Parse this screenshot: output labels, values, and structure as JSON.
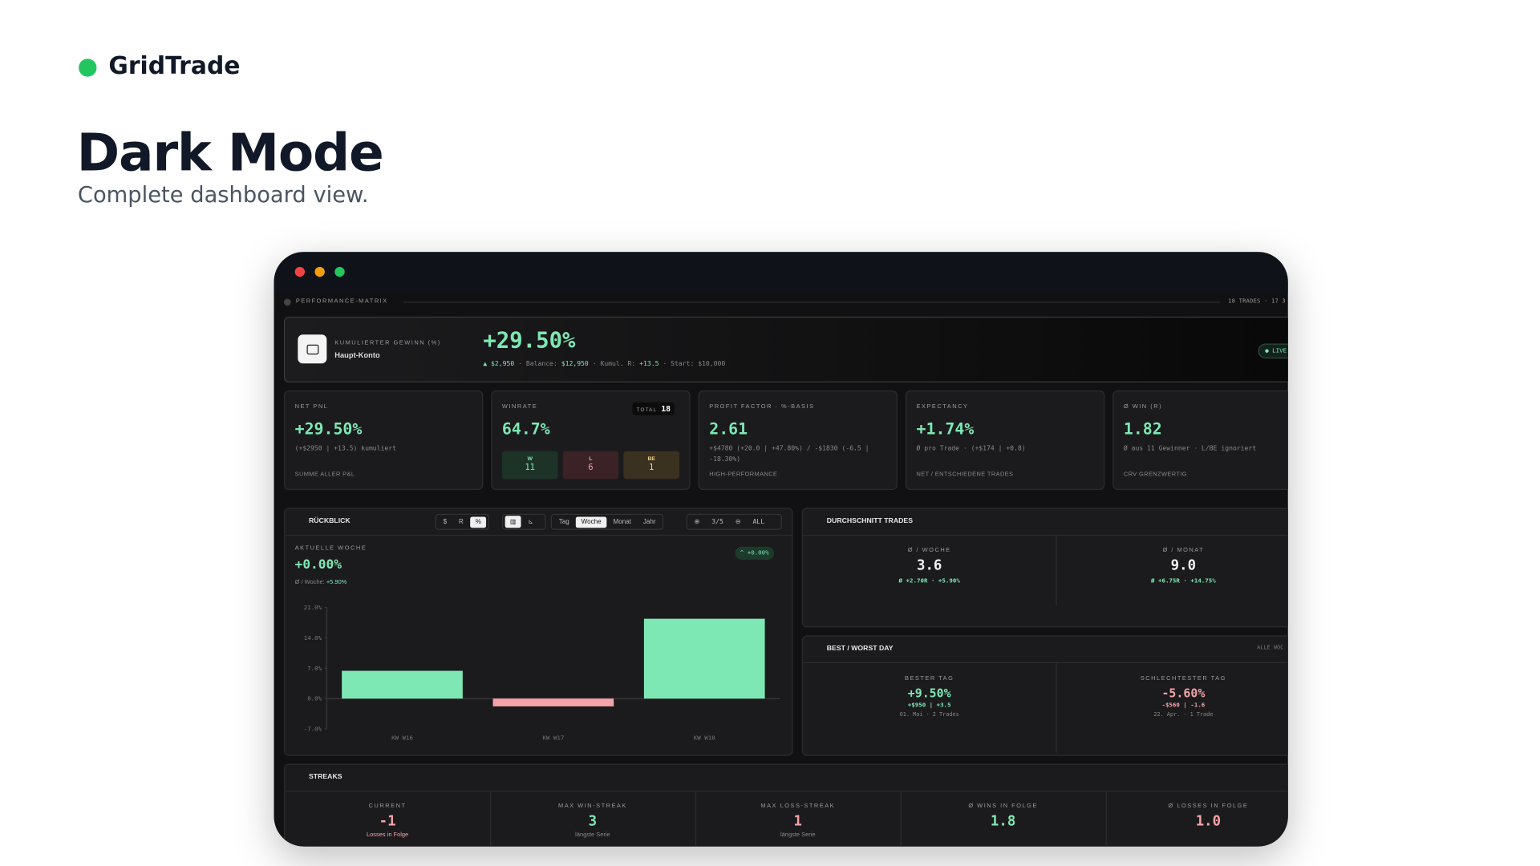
{
  "header": {
    "brand": "GridTrade",
    "title": "Dark Mode",
    "subtitle": "Complete dashboard view."
  },
  "matrix": {
    "label": "PERFORMANCE-MATRIX",
    "meta": "18 TRADES · 17 3"
  },
  "hero": {
    "label": "KUMULIERTER GEWINN (%)",
    "account": "Haupt-Konto",
    "value": "+29.50%",
    "change": "▲ $2,950",
    "balance_label": "· Balance:",
    "balance": "$12,950",
    "r_label": "· Kumul. R:",
    "r": "+13.5",
    "start": "· Start: $10,000",
    "live": "● LIVE"
  },
  "stats": [
    {
      "label": "NET PNL",
      "value": "+29.50%",
      "sub": "(+$2950 | +13.5) kumuliert",
      "footer": "SUMME ALLER P&L"
    },
    {
      "label": "WINRATE",
      "total_label": "TOTAL",
      "total": "18",
      "value": "64.7%",
      "boxes": [
        {
          "label": "W",
          "value": "11"
        },
        {
          "label": "L",
          "value": "6"
        },
        {
          "label": "BE",
          "value": "1"
        }
      ]
    },
    {
      "label": "PROFIT FACTOR · %-BASIS",
      "value": "2.61",
      "sub": "+$4780 (+20.0 | +47.80%) / -$1830 (-6.5 | -18.30%)",
      "footer": "HIGH-PERFORMANCE"
    },
    {
      "label": "EXPECTANCY",
      "value": "+1.74%",
      "sub": "Ø pro Trade · (+$174 | +0.8)",
      "footer": "NET / ENTSCHIEDENE TRADES"
    },
    {
      "label": "Ø WIN (R)",
      "value": "1.82",
      "sub": "Ø aus 11 Gewinner · L/BE ignoriert",
      "footer": "CRV GRENZWERTIG"
    }
  ],
  "review": {
    "title": "RÜCKBLICK",
    "modes": [
      "$",
      "R",
      "%"
    ],
    "periods": [
      "Tag",
      "Woche",
      "Monat",
      "Jahr"
    ],
    "page": "3/5",
    "all": "ALL",
    "current_label": "AKTUELLE WOCHE",
    "current_value": "+0.00%",
    "avg_label": "Ø / Woche:",
    "avg_value": "+5.90%",
    "badge": "^ +0.00%"
  },
  "chart_data": {
    "type": "bar",
    "categories": [
      "KW W16",
      "KW W17",
      "KW W18"
    ],
    "values": [
      6.4,
      -1.8,
      18.4
    ],
    "color": "#7ee8b4",
    "negative_color": "#f4a3a8",
    "ylim": [
      -7,
      21
    ],
    "yticks": [
      {
        "value": -7,
        "label": "-7.0%"
      },
      {
        "value": 0,
        "label": "0.0%"
      },
      {
        "value": 7,
        "label": "7.0%"
      },
      {
        "value": 14,
        "label": "14.0%"
      },
      {
        "value": 21,
        "label": "21.0%"
      }
    ],
    "grid": false
  },
  "averages": {
    "title": "DURCHSCHNITT TRADES",
    "columns": [
      {
        "label": "Ø / WOCHE",
        "value": "3.6",
        "sub": "Ø +2.70R · +5.90%"
      },
      {
        "label": "Ø / MONAT",
        "value": "9.0",
        "sub": "Ø +6.75R · +14.75%"
      }
    ]
  },
  "best_worst": {
    "title": "BEST / WORST DAY",
    "filter": "ALLE WOC",
    "columns": [
      {
        "label": "BESTER TAG",
        "value": "+9.50%",
        "detail": "+$950 | +3.5",
        "date": "01. Mai · 2 Trades"
      },
      {
        "label": "SCHLECHTESTER TAG",
        "value": "-5.60%",
        "detail": "-$560 | -1.6",
        "date": "22. Apr. · 1 Trade"
      }
    ]
  },
  "streaks": {
    "title": "STREAKS",
    "columns": [
      {
        "label": "CURRENT",
        "value": "-1",
        "sub": "Losses in Folge"
      },
      {
        "label": "MAX WIN-STREAK",
        "value": "3",
        "sub": "längste Serie"
      },
      {
        "label": "MAX LOSS-STREAK",
        "value": "1",
        "sub": "längste Serie"
      },
      {
        "label": "Ø WINS IN FOLGE",
        "value": "1.8"
      },
      {
        "label": "Ø LOSSES IN FOLGE",
        "value": "1.0"
      }
    ]
  }
}
